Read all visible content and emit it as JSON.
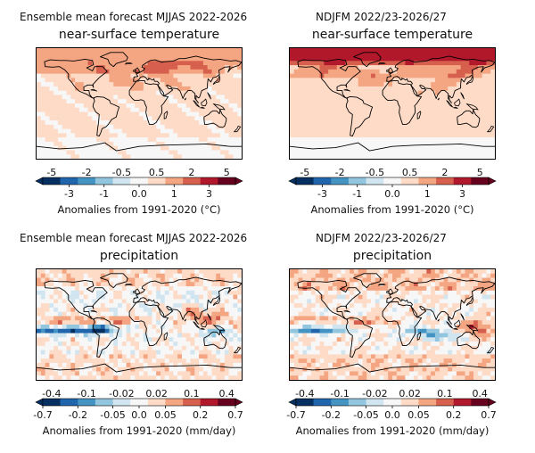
{
  "panels": [
    {
      "id": "temp-mjjas",
      "suptitle": "Ensemble mean forecast MJJAS 2022-2026",
      "title": "near-surface temperature",
      "variable": "temperature",
      "colorbar": {
        "top_ticks": [
          "-5",
          "-2",
          "-0.5",
          "0.5",
          "2",
          "5"
        ],
        "bottom_ticks": [
          "-3",
          "-1",
          "0.0",
          "1",
          "3"
        ],
        "label": "Anomalies from 1991-2020 (°C)"
      }
    },
    {
      "id": "temp-ndjfm",
      "suptitle": "NDJFM 2022/23-2026/27",
      "title": "near-surface temperature",
      "variable": "temperature",
      "colorbar": {
        "top_ticks": [
          "-5",
          "-2",
          "-0.5",
          "0.5",
          "2",
          "5"
        ],
        "bottom_ticks": [
          "-3",
          "-1",
          "0.0",
          "1",
          "3"
        ],
        "label": "Anomalies from 1991-2020 (°C)"
      }
    },
    {
      "id": "precip-mjjas",
      "suptitle": "Ensemble mean forecast MJJAS 2022-2026",
      "title": "precipitation",
      "variable": "precipitation",
      "colorbar": {
        "top_ticks": [
          "-0.4",
          "-0.1",
          "-0.02",
          "0.02",
          "0.1",
          "0.4"
        ],
        "bottom_ticks": [
          "-0.7",
          "-0.2",
          "-0.05",
          "0.0",
          "0.05",
          "0.2",
          "0.7"
        ],
        "label": "Anomalies from 1991-2020 (mm/day)"
      }
    },
    {
      "id": "precip-ndjfm",
      "suptitle": "NDJFM 2022/23-2026/27",
      "title": "precipitation",
      "variable": "precipitation",
      "colorbar": {
        "top_ticks": [
          "-0.4",
          "-0.1",
          "-0.02",
          "0.02",
          "0.1",
          "0.4"
        ],
        "bottom_ticks": [
          "-0.7",
          "-0.2",
          "-0.05",
          "0.0",
          "0.05",
          "0.2",
          "0.7"
        ],
        "label": "Anomalies from 1991-2020 (mm/day)"
      }
    }
  ],
  "colormap": [
    "#053061",
    "#2166ac",
    "#4393c3",
    "#92c5de",
    "#d1e5f0",
    "#f7f7f7",
    "#fddbc7",
    "#f4a582",
    "#d6604d",
    "#b2182b",
    "#67001f"
  ]
}
